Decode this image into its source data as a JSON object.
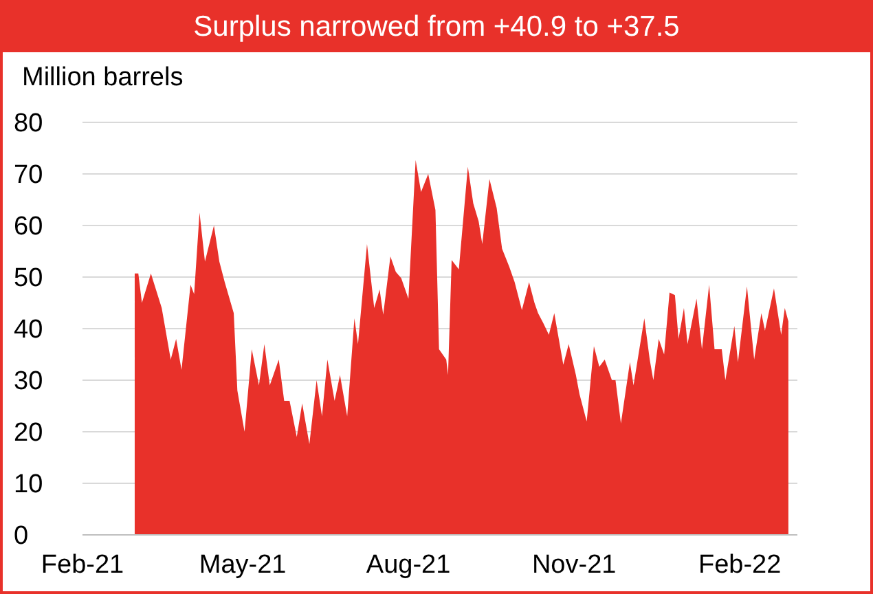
{
  "chart_data": {
    "type": "area",
    "title": "Surplus narrowed from +40.9 to +37.5",
    "ylabel": "Million barrels",
    "x": [
      "2021-03-02",
      "2021-03-04",
      "2021-03-06",
      "2021-03-11",
      "2021-03-17",
      "2021-03-22",
      "2021-03-25",
      "2021-03-28",
      "2021-04-02",
      "2021-04-04",
      "2021-04-07",
      "2021-04-10",
      "2021-04-15",
      "2021-04-18",
      "2021-04-21",
      "2021-04-26",
      "2021-04-28",
      "2021-05-02",
      "2021-05-06",
      "2021-05-10",
      "2021-05-13",
      "2021-05-16",
      "2021-05-21",
      "2021-05-24",
      "2021-05-27",
      "2021-05-31",
      "2021-06-03",
      "2021-06-07",
      "2021-06-11",
      "2021-06-14",
      "2021-06-17",
      "2021-06-21",
      "2021-06-24",
      "2021-06-28",
      "2021-07-02",
      "2021-07-04",
      "2021-07-09",
      "2021-07-13",
      "2021-07-16",
      "2021-07-18",
      "2021-07-22",
      "2021-07-25",
      "2021-07-28",
      "2021-08-01",
      "2021-08-05",
      "2021-08-08",
      "2021-08-12",
      "2021-08-16",
      "2021-08-18",
      "2021-08-22",
      "2021-08-23",
      "2021-08-25",
      "2021-08-29",
      "2021-09-03",
      "2021-09-06",
      "2021-09-09",
      "2021-09-11",
      "2021-09-15",
      "2021-09-19",
      "2021-09-22",
      "2021-09-26",
      "2021-09-29",
      "2021-10-03",
      "2021-10-07",
      "2021-10-10",
      "2021-10-12",
      "2021-10-15",
      "2021-10-18",
      "2021-10-21",
      "2021-10-26",
      "2021-10-29",
      "2021-11-02",
      "2021-11-04",
      "2021-11-08",
      "2021-11-12",
      "2021-11-15",
      "2021-11-18",
      "2021-11-22",
      "2021-11-24",
      "2021-11-27",
      "2021-12-02",
      "2021-12-04",
      "2021-12-10",
      "2021-12-13",
      "2021-12-15",
      "2021-12-18",
      "2021-12-21",
      "2021-12-24",
      "2021-12-27",
      "2021-12-29",
      "2022-01-01",
      "2022-01-03",
      "2022-01-08",
      "2022-01-11",
      "2022-01-15",
      "2022-01-18",
      "2022-01-22",
      "2022-01-24",
      "2022-01-29",
      "2022-01-31",
      "2022-02-05",
      "2022-02-09",
      "2022-02-13",
      "2022-02-15",
      "2022-02-20",
      "2022-02-24",
      "2022-02-26",
      "2022-02-28"
    ],
    "series": [
      {
        "color": "#e8312a",
        "values": [
          50.7,
          50.7,
          45,
          50.7,
          44,
          34,
          38,
          32,
          48.5,
          46.7,
          62.5,
          53,
          60,
          53,
          49,
          43,
          28,
          20,
          36,
          29,
          37,
          29,
          34,
          26,
          26,
          19,
          25.5,
          17.6,
          30,
          23,
          34,
          26,
          31,
          23,
          42,
          37,
          56.4,
          44,
          47.6,
          42.7,
          54,
          51,
          49.8,
          45.8,
          72.7,
          66.5,
          70,
          63,
          36,
          34,
          31,
          53.3,
          51.5,
          71.4,
          64.3,
          60.8,
          56.4,
          69,
          63.4,
          55.5,
          52,
          49,
          43.6,
          49,
          45,
          43,
          41,
          38.8,
          43,
          33,
          37,
          31,
          27.3,
          22,
          36.6,
          32.6,
          34,
          30,
          30,
          21.6,
          33.5,
          29,
          42,
          34,
          30,
          38,
          35,
          47,
          46.5,
          38,
          44,
          37,
          45.8,
          36,
          48.5,
          36,
          36,
          30,
          40.5,
          33.5,
          48.2,
          34,
          43,
          39.6,
          47.8,
          38.8,
          44,
          41.4
        ]
      }
    ],
    "xlim": [
      "2021-02-01",
      "2022-03-05"
    ],
    "xticks": [
      {
        "value": "2021-02-01",
        "label": "Feb-21"
      },
      {
        "value": "2021-05-01",
        "label": "May-21"
      },
      {
        "value": "2021-08-01",
        "label": "Aug-21"
      },
      {
        "value": "2021-11-01",
        "label": "Nov-21"
      },
      {
        "value": "2022-02-01",
        "label": "Feb-22"
      }
    ],
    "ylim": [
      0,
      80
    ],
    "yticks": [
      0,
      10,
      20,
      30,
      40,
      50,
      60,
      70,
      80
    ],
    "grid": "y"
  }
}
